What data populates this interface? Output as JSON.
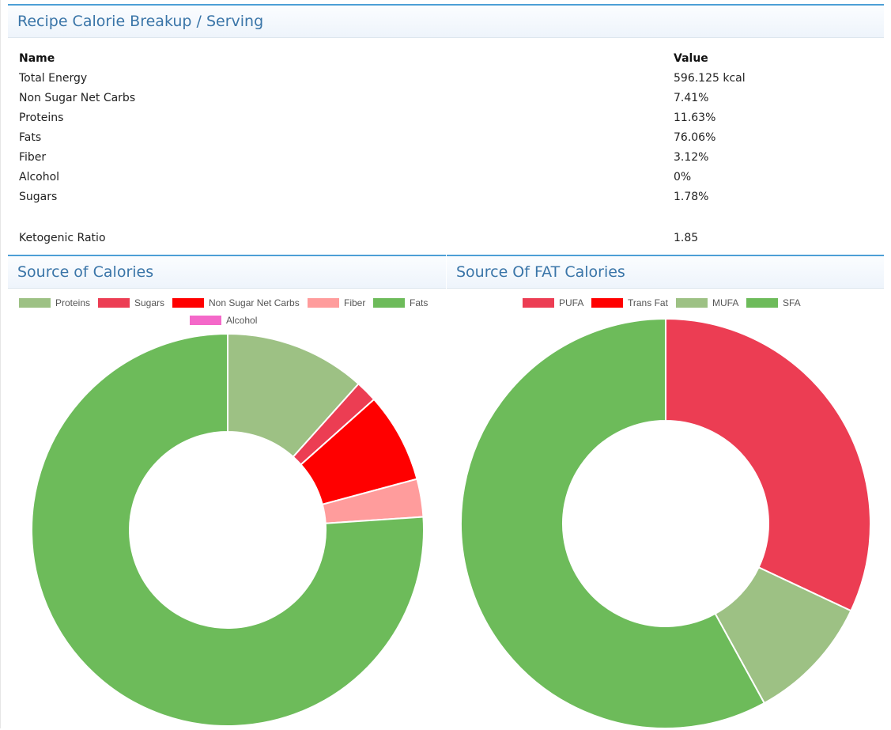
{
  "calorie_panel": {
    "title": "Recipe Calorie Breakup / Serving",
    "header": {
      "name": "Name",
      "value": "Value"
    },
    "rows": [
      {
        "name": "Total Energy",
        "value": "596.125 kcal"
      },
      {
        "name": "Non Sugar Net Carbs",
        "value": "7.41%"
      },
      {
        "name": "Proteins",
        "value": "11.63%"
      },
      {
        "name": "Fats",
        "value": "76.06%"
      },
      {
        "name": "Fiber",
        "value": "3.12%"
      },
      {
        "name": "Alcohol",
        "value": "0%"
      },
      {
        "name": "Sugars",
        "value": "1.78%"
      }
    ],
    "ketogenic": {
      "name": "Ketogenic Ratio",
      "value": "1.85"
    }
  },
  "source_calories": {
    "title": "Source of Calories",
    "legend": [
      {
        "label": "Proteins",
        "color": "#9dc184"
      },
      {
        "label": "Sugars",
        "color": "#ec3d53"
      },
      {
        "label": "Non Sugar Net Carbs",
        "color": "#ff0000"
      },
      {
        "label": "Fiber",
        "color": "#ff9c9c"
      },
      {
        "label": "Fats",
        "color": "#6dbb5a"
      },
      {
        "label": "Alcohol",
        "color": "#f468c9"
      }
    ]
  },
  "source_fat": {
    "title": "Source Of FAT Calories",
    "legend": [
      {
        "label": "PUFA",
        "color": "#ec3d53"
      },
      {
        "label": "Trans Fat",
        "color": "#ff0000"
      },
      {
        "label": "MUFA",
        "color": "#9dc184"
      },
      {
        "label": "SFA",
        "color": "#6dbb5a"
      }
    ]
  },
  "chart_data": [
    {
      "type": "pie",
      "title": "Source of Calories",
      "categories": [
        "Proteins",
        "Sugars",
        "Non Sugar Net Carbs",
        "Fiber",
        "Fats",
        "Alcohol"
      ],
      "values": [
        11.63,
        1.78,
        7.41,
        3.12,
        76.06,
        0
      ],
      "colors": [
        "#9dc184",
        "#ec3d53",
        "#ff0000",
        "#ff9c9c",
        "#6dbb5a",
        "#f468c9"
      ],
      "legend": "top"
    },
    {
      "type": "pie",
      "title": "Source Of FAT Calories",
      "categories": [
        "PUFA",
        "Trans Fat",
        "MUFA",
        "SFA"
      ],
      "values": [
        32,
        0,
        10,
        58
      ],
      "colors": [
        "#ec3d53",
        "#ff0000",
        "#9dc184",
        "#6dbb5a"
      ],
      "legend": "top"
    }
  ]
}
